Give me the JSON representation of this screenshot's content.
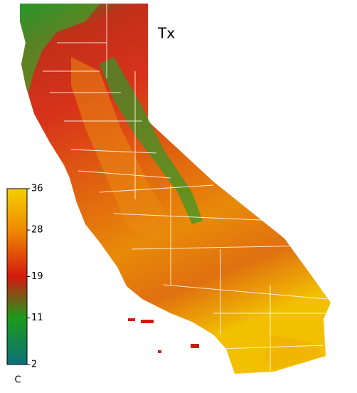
{
  "map": {
    "title": "Tx",
    "colorbar": {
      "lim": [
        2,
        36
      ],
      "ticks": [
        36,
        28,
        19,
        11,
        2
      ],
      "colors": [
        "#f5d000",
        "#ee8a00",
        "#d41a10",
        "#1c9a1c",
        "#0d7078"
      ],
      "unit": "C"
    }
  }
}
